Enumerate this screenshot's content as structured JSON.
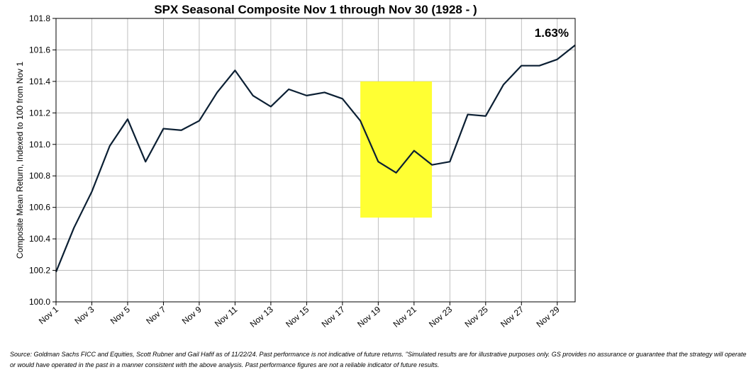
{
  "chart_data": {
    "type": "line",
    "title": "SPX Seasonal Composite Nov 1 through Nov 30 (1928 - )",
    "xlabel": "",
    "ylabel": "Composite Mean Return, Indexed to 100 from Nov 1",
    "x": [
      "Nov 1",
      "Nov 2",
      "Nov 3",
      "Nov 4",
      "Nov 5",
      "Nov 6",
      "Nov 7",
      "Nov 8",
      "Nov 9",
      "Nov 10",
      "Nov 11",
      "Nov 12",
      "Nov 13",
      "Nov 14",
      "Nov 15",
      "Nov 16",
      "Nov 17",
      "Nov 18",
      "Nov 19",
      "Nov 20",
      "Nov 21",
      "Nov 22",
      "Nov 23",
      "Nov 24",
      "Nov 25",
      "Nov 26",
      "Nov 27",
      "Nov 28",
      "Nov 29",
      "Nov 30"
    ],
    "x_tick_labels": [
      "Nov 1",
      "Nov 3",
      "Nov 5",
      "Nov 7",
      "Nov 9",
      "Nov 11",
      "Nov 13",
      "Nov 15",
      "Nov 17",
      "Nov 19",
      "Nov 21",
      "Nov 23",
      "Nov 25",
      "Nov 27",
      "Nov 29"
    ],
    "series": [
      {
        "values": [
          100.19,
          100.47,
          100.7,
          100.99,
          101.16,
          100.89,
          101.1,
          101.09,
          101.15,
          101.33,
          101.47,
          101.31,
          101.24,
          101.35,
          101.31,
          101.33,
          101.29,
          101.15,
          100.89,
          100.82,
          100.96,
          100.87,
          100.89,
          101.19,
          101.18,
          101.38,
          101.5,
          101.5,
          101.54,
          101.63
        ],
        "color": "#0b1f33"
      }
    ],
    "ylim": [
      100.0,
      101.8
    ],
    "y_ticks": [
      "100.0",
      "100.2",
      "100.4",
      "100.6",
      "100.8",
      "101.0",
      "101.2",
      "101.4",
      "101.6",
      "101.8"
    ],
    "grid": true,
    "highlight": {
      "x_start": 18,
      "x_end": 22,
      "y_start": 100.535,
      "y_end": 101.4,
      "color": "#ffff33"
    },
    "annotation": "1.63%"
  },
  "source_note": "Source: Goldman Sachs FICC and Equities, Scott Rubner and Gail Hafif as of 11/22/24. Past performance is not indicative of future returns. \"Simulated results are for illustrative purposes only. GS provides no assurance or guarantee that the strategy will operate or would have operated in the past in a manner consistent with the above analysis. Past performance figures are not a reliable indicator of future results."
}
